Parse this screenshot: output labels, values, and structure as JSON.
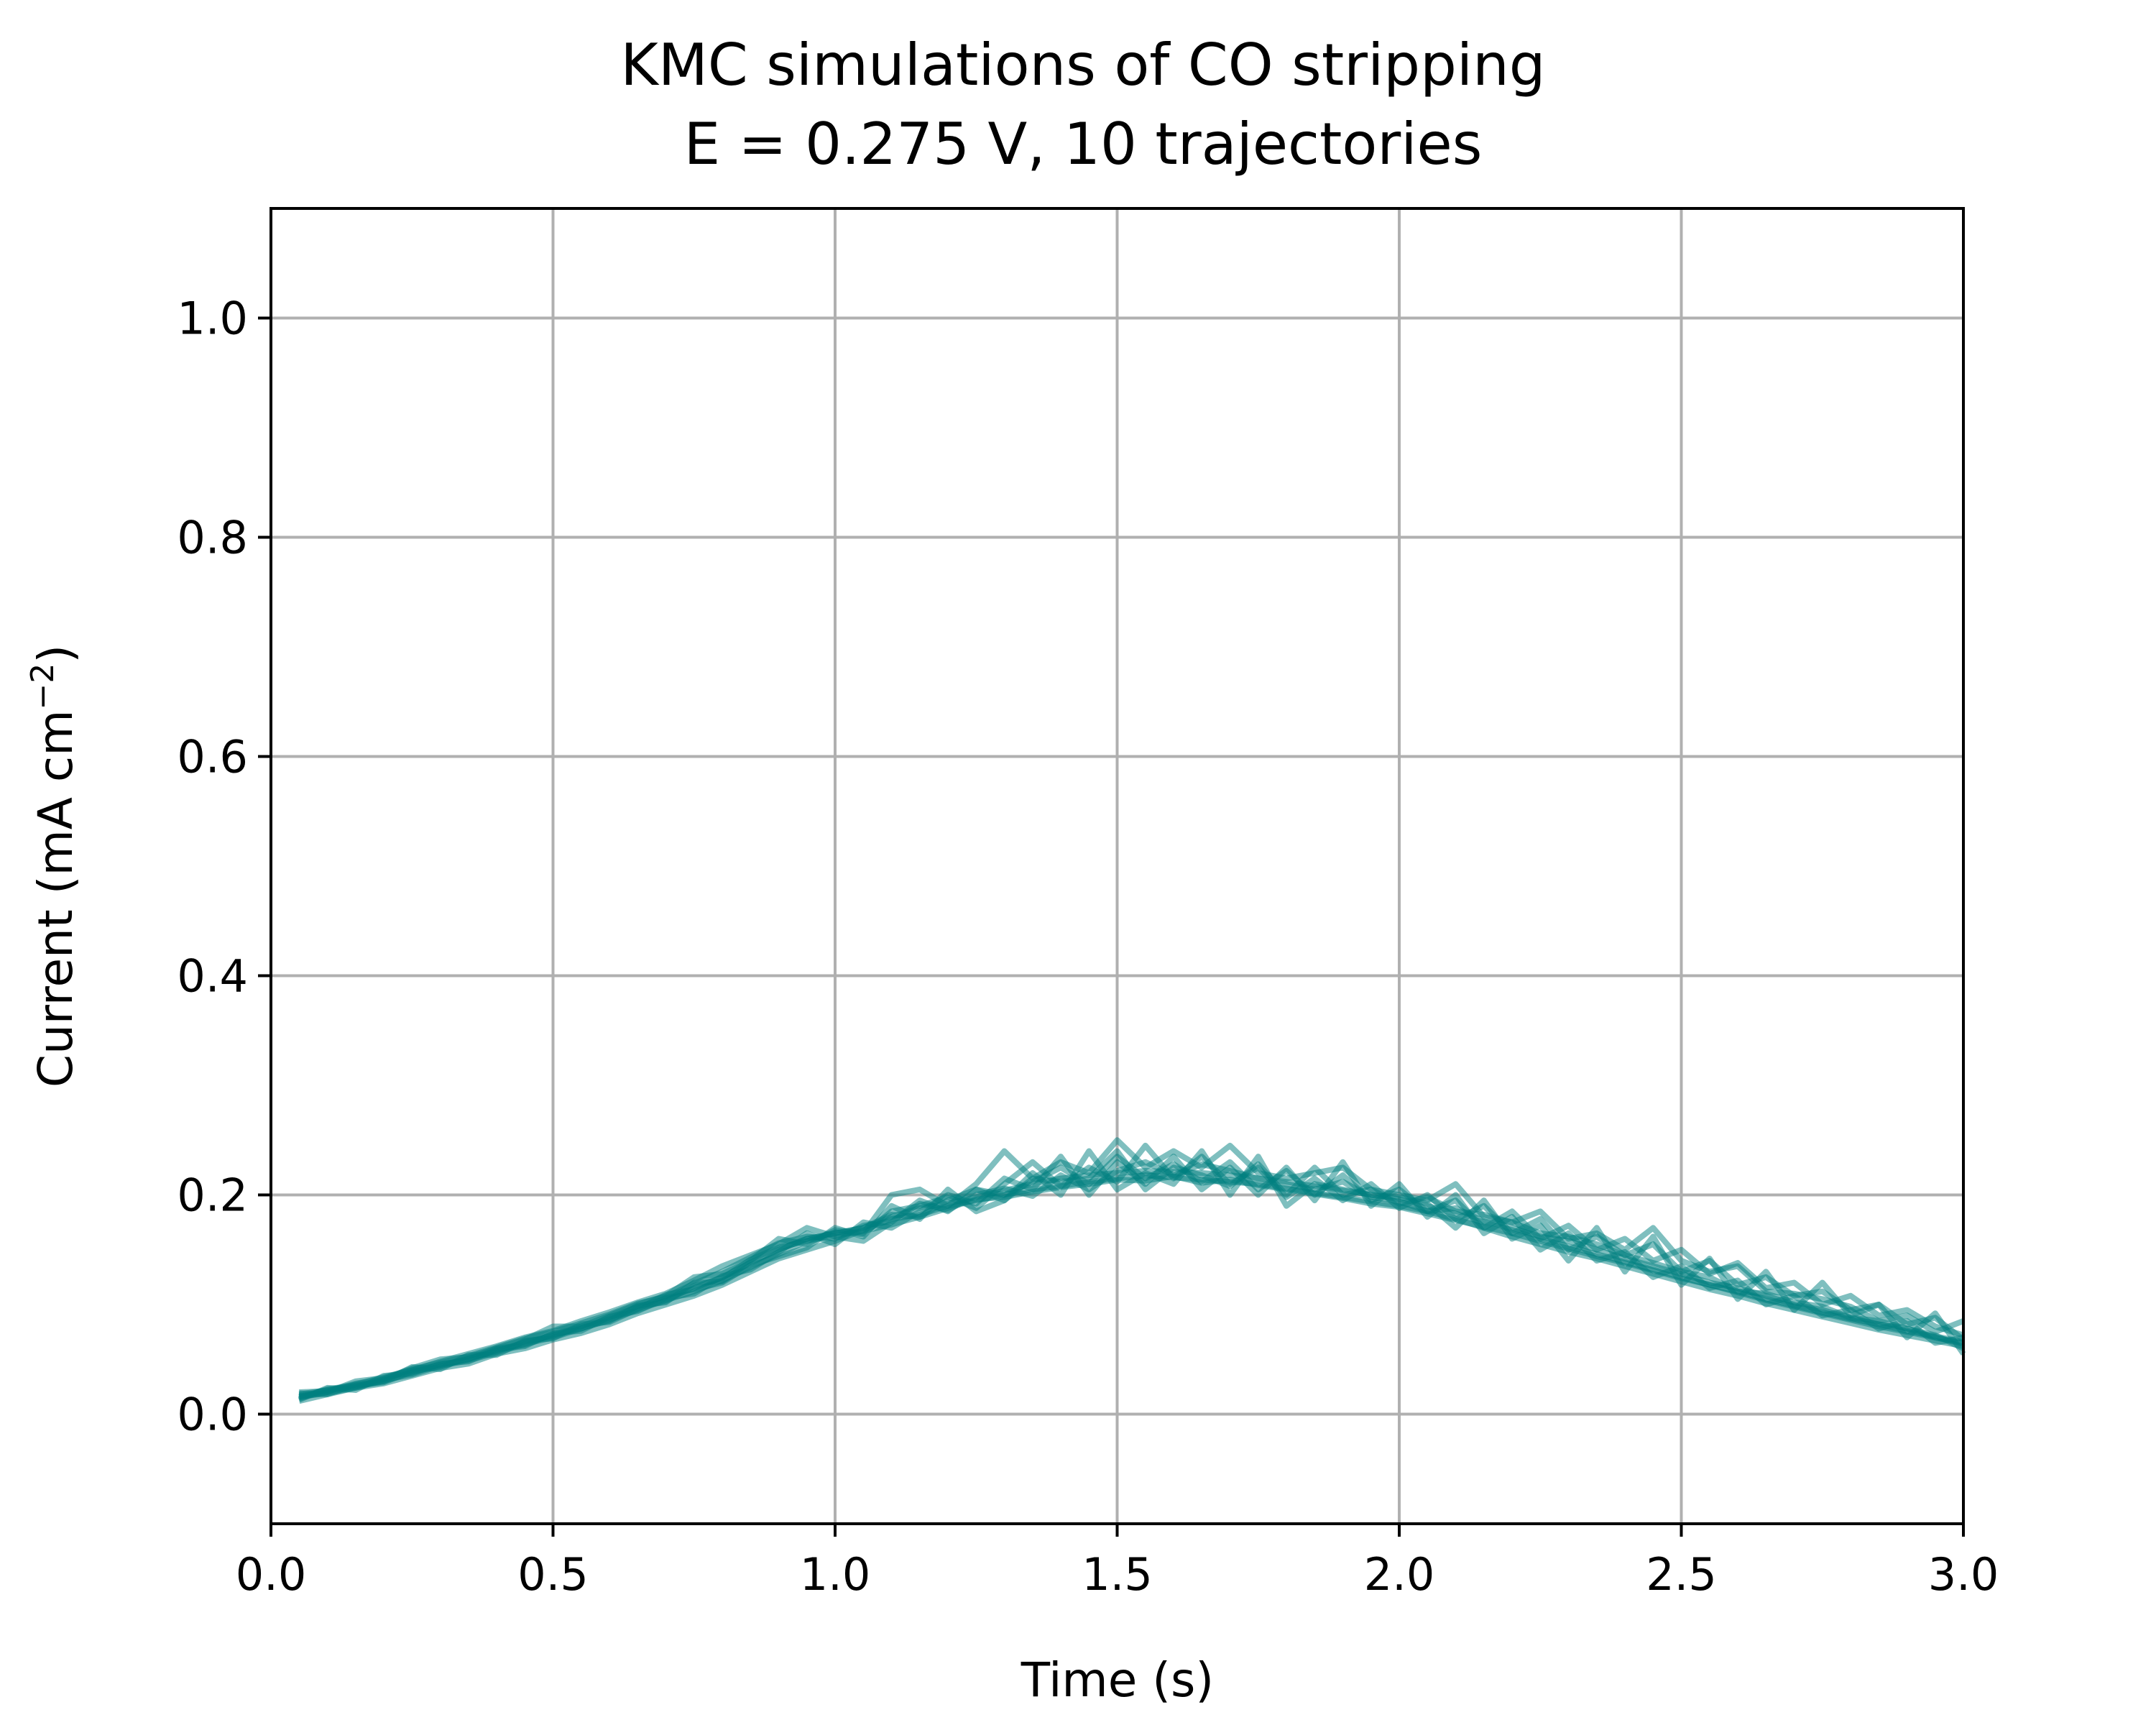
{
  "chart_data": {
    "type": "line",
    "title_lines": [
      "KMC simulations of CO stripping",
      "E = 0.275 V, 10 trajectories"
    ],
    "xlabel": "Time (s)",
    "ylabel_main": "Current (mA cm",
    "ylabel_sup": "−2",
    "ylabel_close": ")",
    "xlim": [
      0.0,
      3.0
    ],
    "ylim": [
      -0.1,
      1.1
    ],
    "xticks": [
      0.0,
      0.5,
      1.0,
      1.5,
      2.0,
      2.5,
      3.0
    ],
    "xtick_labels": [
      "0.0",
      "0.5",
      "1.0",
      "1.5",
      "2.0",
      "2.5",
      "3.0"
    ],
    "yticks": [
      0.0,
      0.2,
      0.4,
      0.6,
      0.8,
      1.0
    ],
    "ytick_labels": [
      "0.0",
      "0.2",
      "0.4",
      "0.6",
      "0.8",
      "1.0"
    ],
    "grid": true,
    "line_color": "#008080",
    "line_opacity": 0.5,
    "x": [
      0.05,
      0.1,
      0.15,
      0.2,
      0.25,
      0.3,
      0.35,
      0.4,
      0.45,
      0.5,
      0.55,
      0.6,
      0.65,
      0.7,
      0.75,
      0.8,
      0.85,
      0.9,
      0.95,
      1.0,
      1.05,
      1.1,
      1.15,
      1.2,
      1.25,
      1.3,
      1.35,
      1.4,
      1.45,
      1.5,
      1.55,
      1.6,
      1.65,
      1.7,
      1.75,
      1.8,
      1.85,
      1.9,
      1.95,
      2.0,
      2.05,
      2.1,
      2.15,
      2.2,
      2.25,
      2.3,
      2.35,
      2.4,
      2.45,
      2.5,
      2.55,
      2.6,
      2.65,
      2.7,
      2.75,
      2.8,
      2.85,
      2.9,
      2.95,
      3.0
    ],
    "series": [
      {
        "values": [
          0.015,
          0.02,
          0.025,
          0.03,
          0.038,
          0.045,
          0.05,
          0.058,
          0.065,
          0.072,
          0.078,
          0.088,
          0.098,
          0.105,
          0.115,
          0.125,
          0.138,
          0.15,
          0.16,
          0.165,
          0.17,
          0.18,
          0.188,
          0.192,
          0.198,
          0.204,
          0.21,
          0.215,
          0.218,
          0.22,
          0.222,
          0.221,
          0.22,
          0.218,
          0.215,
          0.212,
          0.208,
          0.204,
          0.2,
          0.196,
          0.19,
          0.183,
          0.175,
          0.168,
          0.16,
          0.153,
          0.146,
          0.139,
          0.132,
          0.125,
          0.118,
          0.111,
          0.104,
          0.098,
          0.092,
          0.086,
          0.08,
          0.075,
          0.07,
          0.065
        ]
      },
      {
        "values": [
          0.018,
          0.022,
          0.027,
          0.034,
          0.04,
          0.048,
          0.055,
          0.062,
          0.07,
          0.076,
          0.085,
          0.093,
          0.102,
          0.11,
          0.122,
          0.135,
          0.145,
          0.155,
          0.17,
          0.162,
          0.158,
          0.175,
          0.195,
          0.185,
          0.205,
          0.2,
          0.212,
          0.225,
          0.21,
          0.235,
          0.215,
          0.228,
          0.212,
          0.23,
          0.205,
          0.222,
          0.2,
          0.218,
          0.195,
          0.205,
          0.185,
          0.195,
          0.17,
          0.185,
          0.16,
          0.172,
          0.15,
          0.16,
          0.14,
          0.15,
          0.128,
          0.138,
          0.115,
          0.12,
          0.1,
          0.108,
          0.09,
          0.095,
          0.08,
          0.072
        ]
      },
      {
        "values": [
          0.012,
          0.018,
          0.024,
          0.028,
          0.035,
          0.042,
          0.046,
          0.055,
          0.06,
          0.068,
          0.074,
          0.082,
          0.092,
          0.1,
          0.108,
          0.118,
          0.13,
          0.142,
          0.15,
          0.158,
          0.168,
          0.178,
          0.182,
          0.19,
          0.195,
          0.2,
          0.205,
          0.208,
          0.212,
          0.215,
          0.218,
          0.216,
          0.214,
          0.212,
          0.21,
          0.206,
          0.202,
          0.198,
          0.194,
          0.19,
          0.185,
          0.178,
          0.17,
          0.162,
          0.155,
          0.148,
          0.142,
          0.135,
          0.128,
          0.121,
          0.114,
          0.108,
          0.101,
          0.095,
          0.089,
          0.083,
          0.077,
          0.072,
          0.067,
          0.062
        ]
      },
      {
        "values": [
          0.02,
          0.021,
          0.028,
          0.032,
          0.042,
          0.05,
          0.052,
          0.06,
          0.068,
          0.08,
          0.08,
          0.09,
          0.1,
          0.108,
          0.125,
          0.128,
          0.14,
          0.16,
          0.155,
          0.168,
          0.165,
          0.2,
          0.205,
          0.19,
          0.21,
          0.24,
          0.215,
          0.23,
          0.22,
          0.25,
          0.225,
          0.24,
          0.225,
          0.245,
          0.22,
          0.215,
          0.22,
          0.225,
          0.205,
          0.2,
          0.195,
          0.21,
          0.18,
          0.175,
          0.185,
          0.16,
          0.165,
          0.15,
          0.17,
          0.14,
          0.13,
          0.135,
          0.112,
          0.11,
          0.105,
          0.098,
          0.085,
          0.09,
          0.075,
          0.085
        ]
      },
      {
        "values": [
          0.016,
          0.019,
          0.024,
          0.031,
          0.036,
          0.044,
          0.049,
          0.056,
          0.064,
          0.07,
          0.078,
          0.086,
          0.095,
          0.104,
          0.112,
          0.122,
          0.134,
          0.146,
          0.158,
          0.163,
          0.167,
          0.173,
          0.18,
          0.188,
          0.196,
          0.198,
          0.203,
          0.207,
          0.21,
          0.214,
          0.213,
          0.217,
          0.211,
          0.214,
          0.209,
          0.205,
          0.201,
          0.197,
          0.192,
          0.189,
          0.183,
          0.177,
          0.171,
          0.165,
          0.158,
          0.151,
          0.144,
          0.138,
          0.131,
          0.124,
          0.118,
          0.112,
          0.105,
          0.099,
          0.093,
          0.087,
          0.082,
          0.076,
          0.071,
          0.066
        ]
      },
      {
        "values": [
          0.014,
          0.023,
          0.026,
          0.029,
          0.039,
          0.043,
          0.051,
          0.057,
          0.066,
          0.071,
          0.08,
          0.087,
          0.097,
          0.103,
          0.117,
          0.124,
          0.141,
          0.152,
          0.158,
          0.166,
          0.164,
          0.185,
          0.19,
          0.198,
          0.188,
          0.21,
          0.23,
          0.208,
          0.225,
          0.212,
          0.245,
          0.215,
          0.235,
          0.21,
          0.225,
          0.198,
          0.215,
          0.195,
          0.21,
          0.188,
          0.2,
          0.178,
          0.19,
          0.165,
          0.178,
          0.15,
          0.162,
          0.145,
          0.155,
          0.13,
          0.14,
          0.118,
          0.125,
          0.108,
          0.112,
          0.095,
          0.1,
          0.082,
          0.088,
          0.068
        ]
      },
      {
        "values": [
          0.017,
          0.02,
          0.03,
          0.033,
          0.041,
          0.047,
          0.053,
          0.061,
          0.069,
          0.075,
          0.083,
          0.091,
          0.101,
          0.107,
          0.119,
          0.13,
          0.143,
          0.156,
          0.162,
          0.16,
          0.172,
          0.176,
          0.192,
          0.186,
          0.2,
          0.206,
          0.199,
          0.218,
          0.205,
          0.222,
          0.23,
          0.218,
          0.228,
          0.222,
          0.215,
          0.21,
          0.205,
          0.212,
          0.198,
          0.194,
          0.185,
          0.188,
          0.176,
          0.17,
          0.162,
          0.158,
          0.15,
          0.142,
          0.135,
          0.128,
          0.12,
          0.115,
          0.108,
          0.1,
          0.095,
          0.088,
          0.082,
          0.078,
          0.072,
          0.06
        ]
      },
      {
        "values": [
          0.013,
          0.024,
          0.022,
          0.035,
          0.037,
          0.046,
          0.048,
          0.059,
          0.062,
          0.074,
          0.076,
          0.089,
          0.094,
          0.106,
          0.11,
          0.126,
          0.132,
          0.148,
          0.165,
          0.155,
          0.175,
          0.17,
          0.185,
          0.2,
          0.192,
          0.215,
          0.205,
          0.235,
          0.2,
          0.23,
          0.21,
          0.235,
          0.205,
          0.225,
          0.2,
          0.225,
          0.195,
          0.23,
          0.19,
          0.21,
          0.18,
          0.2,
          0.165,
          0.18,
          0.15,
          0.165,
          0.14,
          0.148,
          0.125,
          0.135,
          0.115,
          0.122,
          0.1,
          0.108,
          0.09,
          0.095,
          0.078,
          0.085,
          0.065,
          0.07
        ]
      },
      {
        "values": [
          0.019,
          0.018,
          0.027,
          0.03,
          0.043,
          0.041,
          0.054,
          0.054,
          0.067,
          0.069,
          0.082,
          0.084,
          0.096,
          0.109,
          0.114,
          0.12,
          0.136,
          0.144,
          0.152,
          0.17,
          0.162,
          0.19,
          0.178,
          0.205,
          0.185,
          0.195,
          0.22,
          0.2,
          0.24,
          0.205,
          0.22,
          0.21,
          0.24,
          0.2,
          0.235,
          0.19,
          0.21,
          0.205,
          0.2,
          0.198,
          0.192,
          0.17,
          0.195,
          0.16,
          0.172,
          0.14,
          0.17,
          0.13,
          0.162,
          0.118,
          0.142,
          0.105,
          0.13,
          0.095,
          0.12,
          0.09,
          0.1,
          0.07,
          0.092,
          0.055
        ]
      },
      {
        "values": [
          0.016,
          0.022,
          0.025,
          0.032,
          0.04,
          0.045,
          0.05,
          0.06,
          0.063,
          0.073,
          0.079,
          0.085,
          0.099,
          0.102,
          0.12,
          0.121,
          0.139,
          0.15,
          0.16,
          0.165,
          0.17,
          0.182,
          0.18,
          0.195,
          0.205,
          0.195,
          0.215,
          0.212,
          0.215,
          0.24,
          0.205,
          0.225,
          0.218,
          0.208,
          0.228,
          0.2,
          0.225,
          0.2,
          0.205,
          0.192,
          0.198,
          0.185,
          0.182,
          0.175,
          0.165,
          0.162,
          0.155,
          0.145,
          0.138,
          0.13,
          0.125,
          0.112,
          0.11,
          0.102,
          0.098,
          0.088,
          0.085,
          0.078,
          0.07,
          0.064
        ]
      }
    ]
  }
}
